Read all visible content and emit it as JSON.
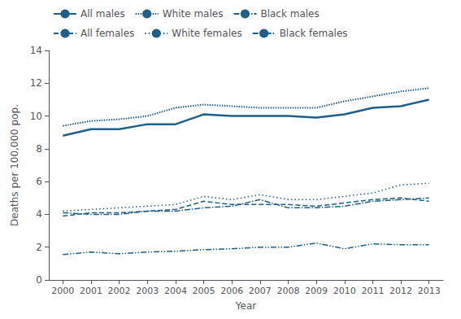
{
  "chart_data": {
    "type": "line",
    "xlabel": "Year",
    "ylabel": "Deaths per 100,000 pop.",
    "x": [
      2000,
      2001,
      2002,
      2003,
      2004,
      2005,
      2006,
      2007,
      2008,
      2009,
      2010,
      2011,
      2012,
      2013
    ],
    "xlim": [
      1999.5,
      2013.5
    ],
    "xticks": [
      2000,
      2001,
      2002,
      2003,
      2004,
      2005,
      2006,
      2007,
      2008,
      2009,
      2010,
      2011,
      2012,
      2013
    ],
    "ylim": [
      0,
      14
    ],
    "yticks": [
      0,
      2,
      4,
      6,
      8,
      10,
      12,
      14
    ],
    "color": "#1f5f8b",
    "grid": false,
    "legend": "upper left",
    "series": [
      {
        "name": "All males",
        "line_style": "solid",
        "values": [
          8.8,
          9.2,
          9.2,
          9.5,
          9.5,
          10.1,
          10.0,
          10.0,
          10.0,
          9.9,
          10.1,
          10.5,
          10.6,
          11.0
        ]
      },
      {
        "name": "White males",
        "line_style": "densely_dotted",
        "values": [
          9.4,
          9.7,
          9.8,
          10.0,
          10.5,
          10.7,
          10.6,
          10.5,
          10.5,
          10.5,
          10.9,
          11.2,
          11.5,
          11.7
        ]
      },
      {
        "name": "Black males",
        "line_style": "dashdot",
        "values": [
          4.1,
          4.0,
          4.0,
          4.2,
          4.2,
          4.4,
          4.5,
          4.9,
          4.4,
          4.4,
          4.5,
          4.8,
          4.9,
          5.0
        ]
      },
      {
        "name": "All females",
        "line_style": "dashed",
        "values": [
          3.9,
          4.1,
          4.1,
          4.2,
          4.3,
          4.8,
          4.6,
          4.6,
          4.6,
          4.5,
          4.7,
          4.9,
          5.0,
          4.8
        ]
      },
      {
        "name": "White females",
        "line_style": "dotted",
        "values": [
          4.2,
          4.3,
          4.4,
          4.5,
          4.6,
          5.1,
          4.9,
          5.2,
          4.9,
          4.9,
          5.1,
          5.3,
          5.8,
          5.9
        ]
      },
      {
        "name": "Black females",
        "line_style": "dashdotdot",
        "values": [
          1.55,
          1.7,
          1.6,
          1.7,
          1.75,
          1.85,
          1.9,
          2.0,
          2.0,
          2.25,
          1.9,
          2.2,
          2.15,
          2.15
        ]
      }
    ]
  }
}
